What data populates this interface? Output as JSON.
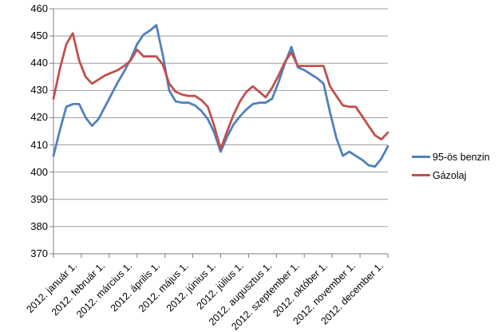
{
  "chart_data": {
    "type": "line",
    "title": "",
    "grid": "horizontal",
    "legend_position": "right",
    "y_axis": {
      "min": 370,
      "max": 460,
      "step": 10,
      "tick_labels": [
        "370",
        "380",
        "390",
        "400",
        "410",
        "420",
        "430",
        "440",
        "450",
        "460"
      ]
    },
    "x_axis": {
      "tick_labels": [
        "2012. január 1.",
        "2012. február 1.",
        "2012. március 1.",
        "2012. április 1.",
        "2012. május 1.",
        "2012. június 1.",
        "2012. július 1.",
        "2012. augusztus 1.",
        "2012. szeptember 1.",
        "2012. október 1.",
        "2012. november 1.",
        "2012. december 1."
      ],
      "points_per_series": 53,
      "interval": "weekly"
    },
    "series": [
      {
        "name": "95-ös benzin",
        "color": "#4F81BD",
        "values": [
          406,
          415.5,
          424,
          425,
          425,
          420,
          417,
          419.5,
          424,
          428.5,
          433,
          437,
          441.5,
          447,
          450.5,
          452,
          454,
          443,
          430,
          426,
          425.5,
          425.5,
          424.5,
          422.5,
          419.5,
          414.5,
          407.5,
          413,
          417.5,
          420.5,
          423,
          425,
          425.5,
          425.5,
          427,
          433,
          440,
          446,
          438.5,
          437.5,
          436,
          434.5,
          432.5,
          422,
          412.5,
          406,
          407.5,
          406,
          404.5,
          402.5,
          402,
          405,
          409.5
        ]
      },
      {
        "name": "Gázolaj",
        "color": "#C0504D",
        "values": [
          427,
          438,
          447,
          451,
          441,
          435,
          432.5,
          434,
          435.5,
          436.5,
          437.5,
          439,
          441,
          445,
          442.5,
          442.5,
          442.5,
          439.5,
          432.5,
          429.5,
          428.5,
          428,
          428,
          426.5,
          424,
          417,
          408.5,
          415,
          421,
          426,
          429.5,
          431.5,
          429.5,
          427.5,
          431,
          435.5,
          440.5,
          444,
          439,
          439,
          439,
          439,
          439,
          431.5,
          428,
          424.5,
          424,
          424,
          420.5,
          417,
          413.5,
          412,
          414.5
        ]
      }
    ],
    "colors": {
      "gridline": "#9E9E9E",
      "axis": "#7F7F7F",
      "label": "#000000",
      "background": "#FFFFFF"
    }
  }
}
